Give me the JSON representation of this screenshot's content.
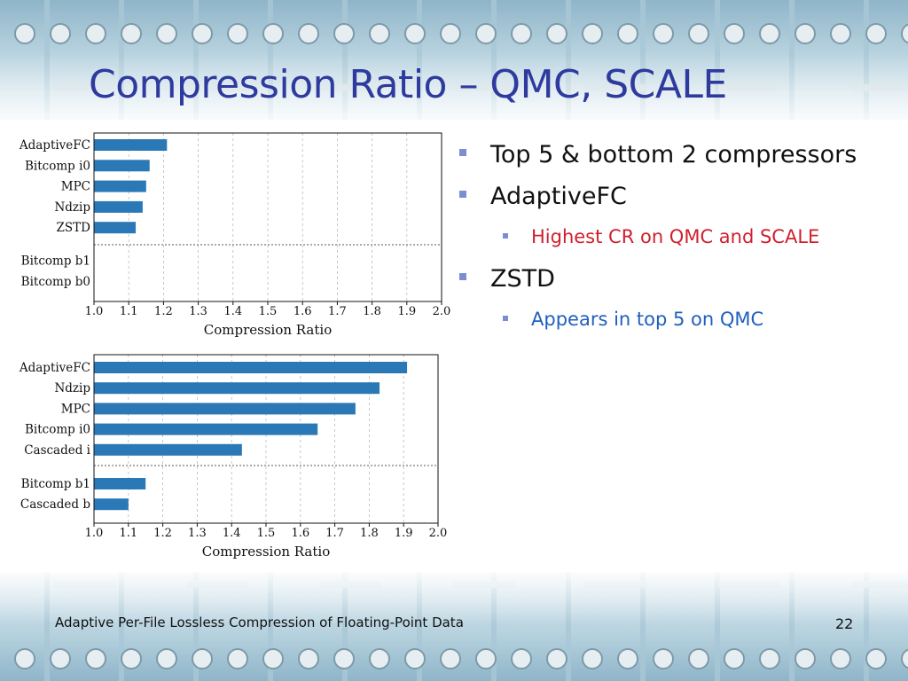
{
  "slide": {
    "title": "Compression Ratio – QMC, SCALE",
    "footer": "Adaptive Per-File Lossless Compression of Floating-Point Data",
    "page_number": "22"
  },
  "bullets": [
    {
      "text": "Top 5 & bottom 2 compressors"
    },
    {
      "text": "AdaptiveFC",
      "sub": "Highest CR on QMC and SCALE",
      "sub_color": "#d0202e"
    },
    {
      "text": "ZSTD",
      "sub": "Appears in top 5 on QMC",
      "sub_color": "#1f5fbf"
    }
  ],
  "colors": {
    "bar": "#2a78b6",
    "title": "#2e3a9e",
    "bullet": "#7b8fd0"
  },
  "chart_data": [
    {
      "type": "bar",
      "orientation": "horizontal",
      "categories": [
        "AdaptiveFC",
        "Bitcomp i0",
        "MPC",
        "Ndzip",
        "ZSTD",
        "Bitcomp b1",
        "Bitcomp b0"
      ],
      "values": [
        1.21,
        1.16,
        1.15,
        1.14,
        1.12,
        1.0,
        1.0
      ],
      "separator_after": 5,
      "xlabel": "Compression Ratio",
      "xlim": [
        1.0,
        2.0
      ],
      "xticks": [
        "1.0",
        "1.1",
        "1.2",
        "1.3",
        "1.4",
        "1.5",
        "1.6",
        "1.7",
        "1.8",
        "1.9",
        "2.0"
      ],
      "grid": "vertical-dashed"
    },
    {
      "type": "bar",
      "orientation": "horizontal",
      "categories": [
        "AdaptiveFC",
        "Ndzip",
        "MPC",
        "Bitcomp i0",
        "Cascaded i",
        "Bitcomp b1",
        "Cascaded b"
      ],
      "values": [
        1.91,
        1.83,
        1.76,
        1.65,
        1.43,
        1.15,
        1.1
      ],
      "separator_after": 5,
      "xlabel": "Compression Ratio",
      "xlim": [
        1.0,
        2.0
      ],
      "xticks": [
        "1.0",
        "1.1",
        "1.2",
        "1.3",
        "1.4",
        "1.5",
        "1.6",
        "1.7",
        "1.8",
        "1.9",
        "2.0"
      ],
      "grid": "vertical-dashed"
    }
  ]
}
